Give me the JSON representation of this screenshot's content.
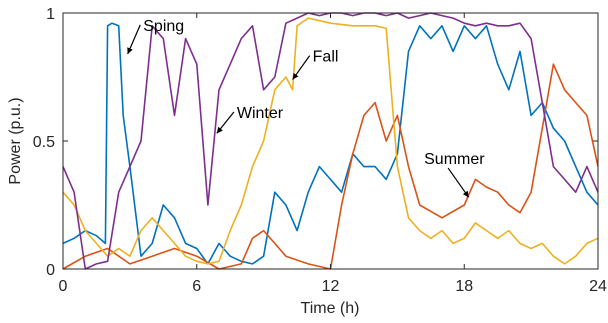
{
  "chart_data": {
    "type": "line",
    "xlabel": "Time (h)",
    "ylabel": "Power (p.u.)",
    "xlim": [
      0,
      24
    ],
    "ylim": [
      0,
      1
    ],
    "xticks": [
      0,
      6,
      12,
      18,
      24
    ],
    "xtick_labels": [
      "0",
      "6",
      "12",
      "18",
      "24"
    ],
    "yticks": [
      0,
      0.5,
      1
    ],
    "ytick_labels": [
      "0",
      "0.5",
      "1"
    ],
    "grid": false,
    "series": [
      {
        "key": "spring",
        "color": "#0072BD",
        "x": [
          0,
          0.5,
          1,
          1.5,
          1.9,
          2.0,
          2.2,
          2.5,
          2.7,
          3.0,
          3.5,
          4.0,
          4.5,
          5.0,
          5.5,
          6.0,
          6.5,
          7.0,
          7.5,
          8.0,
          8.5,
          9.0,
          9.5,
          10.0,
          10.5,
          11.0,
          11.5,
          12.0,
          12.5,
          13.0,
          13.5,
          14.0,
          14.5,
          15.0,
          15.5,
          16.0,
          16.5,
          17.0,
          17.5,
          18.0,
          18.5,
          19.0,
          19.5,
          20.0,
          20.5,
          21.0,
          21.5,
          22.0,
          22.5,
          23.0,
          23.5,
          24.0
        ],
        "y": [
          0.1,
          0.12,
          0.15,
          0.13,
          0.1,
          0.95,
          0.96,
          0.95,
          0.6,
          0.4,
          0.05,
          0.1,
          0.25,
          0.2,
          0.1,
          0.08,
          0.02,
          0.1,
          0.05,
          0.03,
          0.02,
          0.05,
          0.3,
          0.25,
          0.15,
          0.3,
          0.4,
          0.35,
          0.3,
          0.45,
          0.4,
          0.4,
          0.35,
          0.45,
          0.85,
          0.95,
          0.9,
          0.95,
          0.85,
          0.95,
          0.9,
          0.95,
          0.8,
          0.7,
          0.85,
          0.6,
          0.65,
          0.55,
          0.5,
          0.4,
          0.3,
          0.25
        ]
      },
      {
        "key": "summer",
        "color": "#D95319",
        "x": [
          0,
          1,
          2,
          3,
          4,
          5,
          6,
          7,
          8,
          8.5,
          9,
          9.5,
          10,
          11,
          12,
          12.5,
          13,
          13.5,
          14,
          14.5,
          15,
          15.5,
          16,
          17,
          18,
          18.5,
          19,
          19.5,
          20,
          20.5,
          21,
          21.5,
          22,
          22.5,
          23,
          23.5,
          24
        ],
        "y": [
          0.0,
          0.05,
          0.08,
          0.02,
          0.05,
          0.08,
          0.05,
          0.0,
          0.02,
          0.12,
          0.15,
          0.1,
          0.05,
          0.02,
          0.0,
          0.25,
          0.45,
          0.6,
          0.65,
          0.5,
          0.6,
          0.4,
          0.25,
          0.2,
          0.25,
          0.35,
          0.32,
          0.3,
          0.25,
          0.22,
          0.3,
          0.55,
          0.8,
          0.7,
          0.65,
          0.6,
          0.4
        ]
      },
      {
        "key": "fall",
        "color": "#EDB120",
        "x": [
          0,
          0.5,
          1,
          1.5,
          2,
          2.5,
          3,
          3.5,
          4,
          4.5,
          5,
          5.5,
          6,
          6.5,
          7,
          7.5,
          8,
          8.5,
          9,
          9.5,
          10,
          10.3,
          10.5,
          11,
          12,
          13,
          14,
          14.5,
          15,
          15.5,
          16,
          16.5,
          17,
          17.5,
          18,
          18.5,
          19,
          19.5,
          20,
          20.5,
          21,
          21.5,
          22,
          22.5,
          23,
          23.5,
          24
        ],
        "y": [
          0.3,
          0.25,
          0.15,
          0.1,
          0.05,
          0.08,
          0.05,
          0.15,
          0.2,
          0.15,
          0.1,
          0.05,
          0.03,
          0.02,
          0.03,
          0.15,
          0.25,
          0.4,
          0.5,
          0.7,
          0.75,
          0.7,
          0.95,
          0.98,
          0.96,
          0.95,
          0.95,
          0.94,
          0.4,
          0.2,
          0.15,
          0.12,
          0.15,
          0.1,
          0.12,
          0.18,
          0.15,
          0.12,
          0.15,
          0.1,
          0.08,
          0.1,
          0.05,
          0.02,
          0.05,
          0.1,
          0.12
        ]
      },
      {
        "key": "winter",
        "color": "#7E2F8E",
        "x": [
          0,
          0.5,
          1,
          1.5,
          2,
          2.5,
          3,
          3.5,
          4,
          4.5,
          5,
          5.5,
          6,
          6.5,
          7,
          7.5,
          8,
          8.5,
          9,
          9.5,
          10,
          10.5,
          11,
          11.5,
          12,
          12.5,
          13,
          13.5,
          14,
          14.5,
          15,
          15.5,
          16,
          16.5,
          17,
          17.5,
          18,
          18.5,
          19,
          19.5,
          20,
          20.5,
          21,
          21.5,
          22,
          22.5,
          23,
          23.5,
          24
        ],
        "y": [
          0.4,
          0.3,
          0.0,
          0.02,
          0.03,
          0.3,
          0.4,
          0.5,
          0.95,
          0.9,
          0.6,
          0.9,
          0.8,
          0.25,
          0.7,
          0.8,
          0.9,
          0.95,
          0.7,
          0.75,
          0.96,
          0.98,
          1.0,
          0.99,
          1.0,
          1.0,
          0.99,
          1.0,
          1.0,
          0.99,
          1.0,
          0.98,
          0.99,
          1.0,
          0.99,
          0.98,
          0.96,
          0.95,
          0.96,
          0.95,
          0.95,
          0.96,
          0.9,
          0.65,
          0.4,
          0.35,
          0.3,
          0.4,
          0.3
        ]
      }
    ],
    "annotations": [
      {
        "text": "Sping",
        "x": 3.6,
        "y": 0.93,
        "arrow_to": [
          2.9,
          0.84
        ]
      },
      {
        "text": "Fall",
        "x": 11.2,
        "y": 0.81,
        "arrow_to": [
          10.3,
          0.74
        ]
      },
      {
        "text": "Winter",
        "x": 7.8,
        "y": 0.59,
        "arrow_to": [
          6.9,
          0.53
        ]
      },
      {
        "text": "Summer",
        "x": 16.2,
        "y": 0.41,
        "arrow_to": [
          18.2,
          0.28
        ]
      }
    ]
  }
}
